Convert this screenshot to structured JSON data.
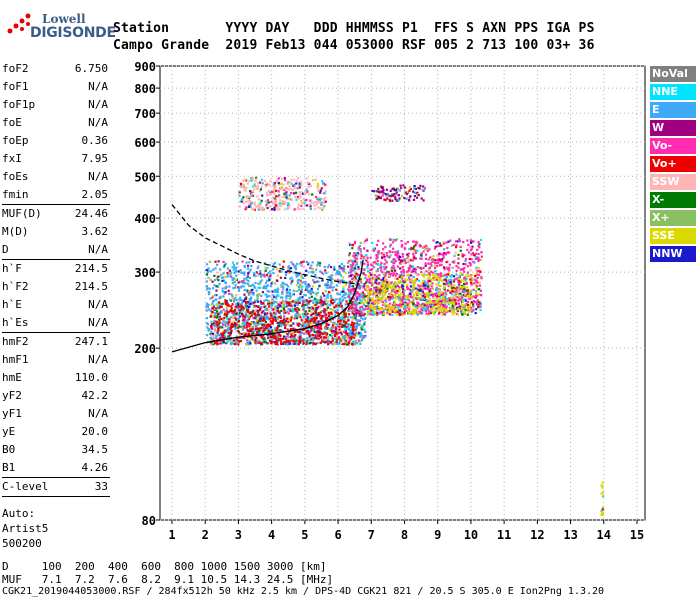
{
  "logo": {
    "line1": "Lowell",
    "line2": "DIGISONDE"
  },
  "header": {
    "labels": "Station       YYYY DAY   DDD HHMMSS P1  FFS S AXN PPS IGA PS",
    "values": "Campo Grande  2019 Feb13 044 053000 RSF 005 2 713 100 03+ 36"
  },
  "params": [
    {
      "k": "foF2",
      "v": "6.750",
      "sep": false
    },
    {
      "k": "foF1",
      "v": "N/A",
      "sep": false
    },
    {
      "k": "foF1p",
      "v": "N/A",
      "sep": false
    },
    {
      "k": "foE",
      "v": "N/A",
      "sep": false
    },
    {
      "k": "foEp",
      "v": "0.36",
      "sep": false
    },
    {
      "k": "fxI",
      "v": "7.95",
      "sep": false
    },
    {
      "k": "foEs",
      "v": "N/A",
      "sep": false
    },
    {
      "k": "fmin",
      "v": "2.05",
      "sep": true
    },
    {
      "k": "MUF(D)",
      "v": "24.46",
      "sep": false
    },
    {
      "k": "M(D)",
      "v": "3.62",
      "sep": false
    },
    {
      "k": "D",
      "v": "N/A",
      "sep": true
    },
    {
      "k": "h`F",
      "v": "214.5",
      "sep": false
    },
    {
      "k": "h`F2",
      "v": "214.5",
      "sep": false
    },
    {
      "k": "h`E",
      "v": "N/A",
      "sep": false
    },
    {
      "k": "h`Es",
      "v": "N/A",
      "sep": true
    },
    {
      "k": "hmF2",
      "v": "247.1",
      "sep": false
    },
    {
      "k": "hmF1",
      "v": "N/A",
      "sep": false
    },
    {
      "k": "hmE",
      "v": "110.0",
      "sep": false
    },
    {
      "k": "yF2",
      "v": "42.2",
      "sep": false
    },
    {
      "k": "yF1",
      "v": "N/A",
      "sep": false
    },
    {
      "k": "yE",
      "v": "20.0",
      "sep": false
    },
    {
      "k": "B0",
      "v": "34.5",
      "sep": false
    },
    {
      "k": "B1",
      "v": "4.26",
      "sep": true
    },
    {
      "k": "C-level",
      "v": "33",
      "sep": true
    }
  ],
  "auto": {
    "line1": "Auto:",
    "line2": "Artist5",
    "line3": "500200"
  },
  "legend": [
    {
      "label": "NoVal",
      "color": "#808080"
    },
    {
      "label": "NNE",
      "color": "#00e5ff"
    },
    {
      "label": "E",
      "color": "#3fa9f5"
    },
    {
      "label": "W",
      "color": "#a0007f"
    },
    {
      "label": "Vo-",
      "color": "#ff2bb0"
    },
    {
      "label": "Vo+",
      "color": "#ee0000"
    },
    {
      "label": "SSW",
      "color": "#ffb5b5"
    },
    {
      "label": "X-",
      "color": "#007a00"
    },
    {
      "label": "X+",
      "color": "#88c060"
    },
    {
      "label": "SSE",
      "color": "#d9d900"
    },
    {
      "label": "NNW",
      "color": "#1a1acc"
    }
  ],
  "footer": {
    "line1": "D     100  200  400  600  800 1000 1500 3000 [km]",
    "line2": "MUF   7.1  7.2  7.6  8.2  9.1 10.5 14.3 24.5 [MHz]",
    "line3": "CGK21_2019044053000.RSF / 284fx512h 50 kHz 2.5 km / DPS-4D CGK21 821 / 20.5 S 305.0 E Ion2Png 1.3.20"
  },
  "chart_data": {
    "type": "scatter",
    "title": "",
    "xlabel": "",
    "ylabel": "",
    "xlim": [
      1,
      15
    ],
    "ylim": [
      80,
      900
    ],
    "y_scale": "log",
    "x_ticks": [
      1,
      2,
      3,
      4,
      5,
      6,
      7,
      8,
      9,
      10,
      11,
      12,
      13,
      14,
      15
    ],
    "y_ticks": [
      80,
      200,
      300,
      400,
      500,
      600,
      700,
      800,
      900
    ],
    "grid": "dotted",
    "legend_position": "right",
    "trace_profile": {
      "name": "",
      "x": [
        1.0,
        2.0,
        3.0,
        4.0,
        5.0,
        5.5,
        6.0,
        6.3,
        6.5,
        6.7,
        6.75
      ],
      "y": [
        196,
        206,
        212,
        216,
        222,
        228,
        238,
        250,
        268,
        300,
        320
      ]
    },
    "trace_dashed": {
      "name": "",
      "x": [
        1.0,
        1.5,
        2.0,
        2.5,
        3.0,
        3.5,
        4.0,
        4.5,
        5.0,
        5.5,
        6.0,
        6.5
      ],
      "y": [
        430,
        385,
        360,
        345,
        330,
        318,
        310,
        302,
        296,
        290,
        285,
        282
      ]
    },
    "echo_clusters": [
      {
        "x": [
          2.0,
          6.8
        ],
        "y": [
          205,
          320
        ],
        "type": "E"
      },
      {
        "x": [
          2.1,
          6.5
        ],
        "y": [
          205,
          260
        ],
        "type": "Vo+"
      },
      {
        "x": [
          6.3,
          10.3
        ],
        "y": [
          240,
          360
        ],
        "type": "Vo-"
      },
      {
        "x": [
          6.8,
          10.0
        ],
        "y": [
          240,
          300
        ],
        "type": "SSE"
      },
      {
        "x": [
          3.0,
          5.6
        ],
        "y": [
          420,
          500
        ],
        "type": "SSW"
      },
      {
        "x": [
          7.0,
          8.6
        ],
        "y": [
          440,
          480
        ],
        "type": "W"
      },
      {
        "x": [
          13.9,
          13.95
        ],
        "y": [
          82,
          100
        ],
        "type": "SSE"
      }
    ]
  }
}
